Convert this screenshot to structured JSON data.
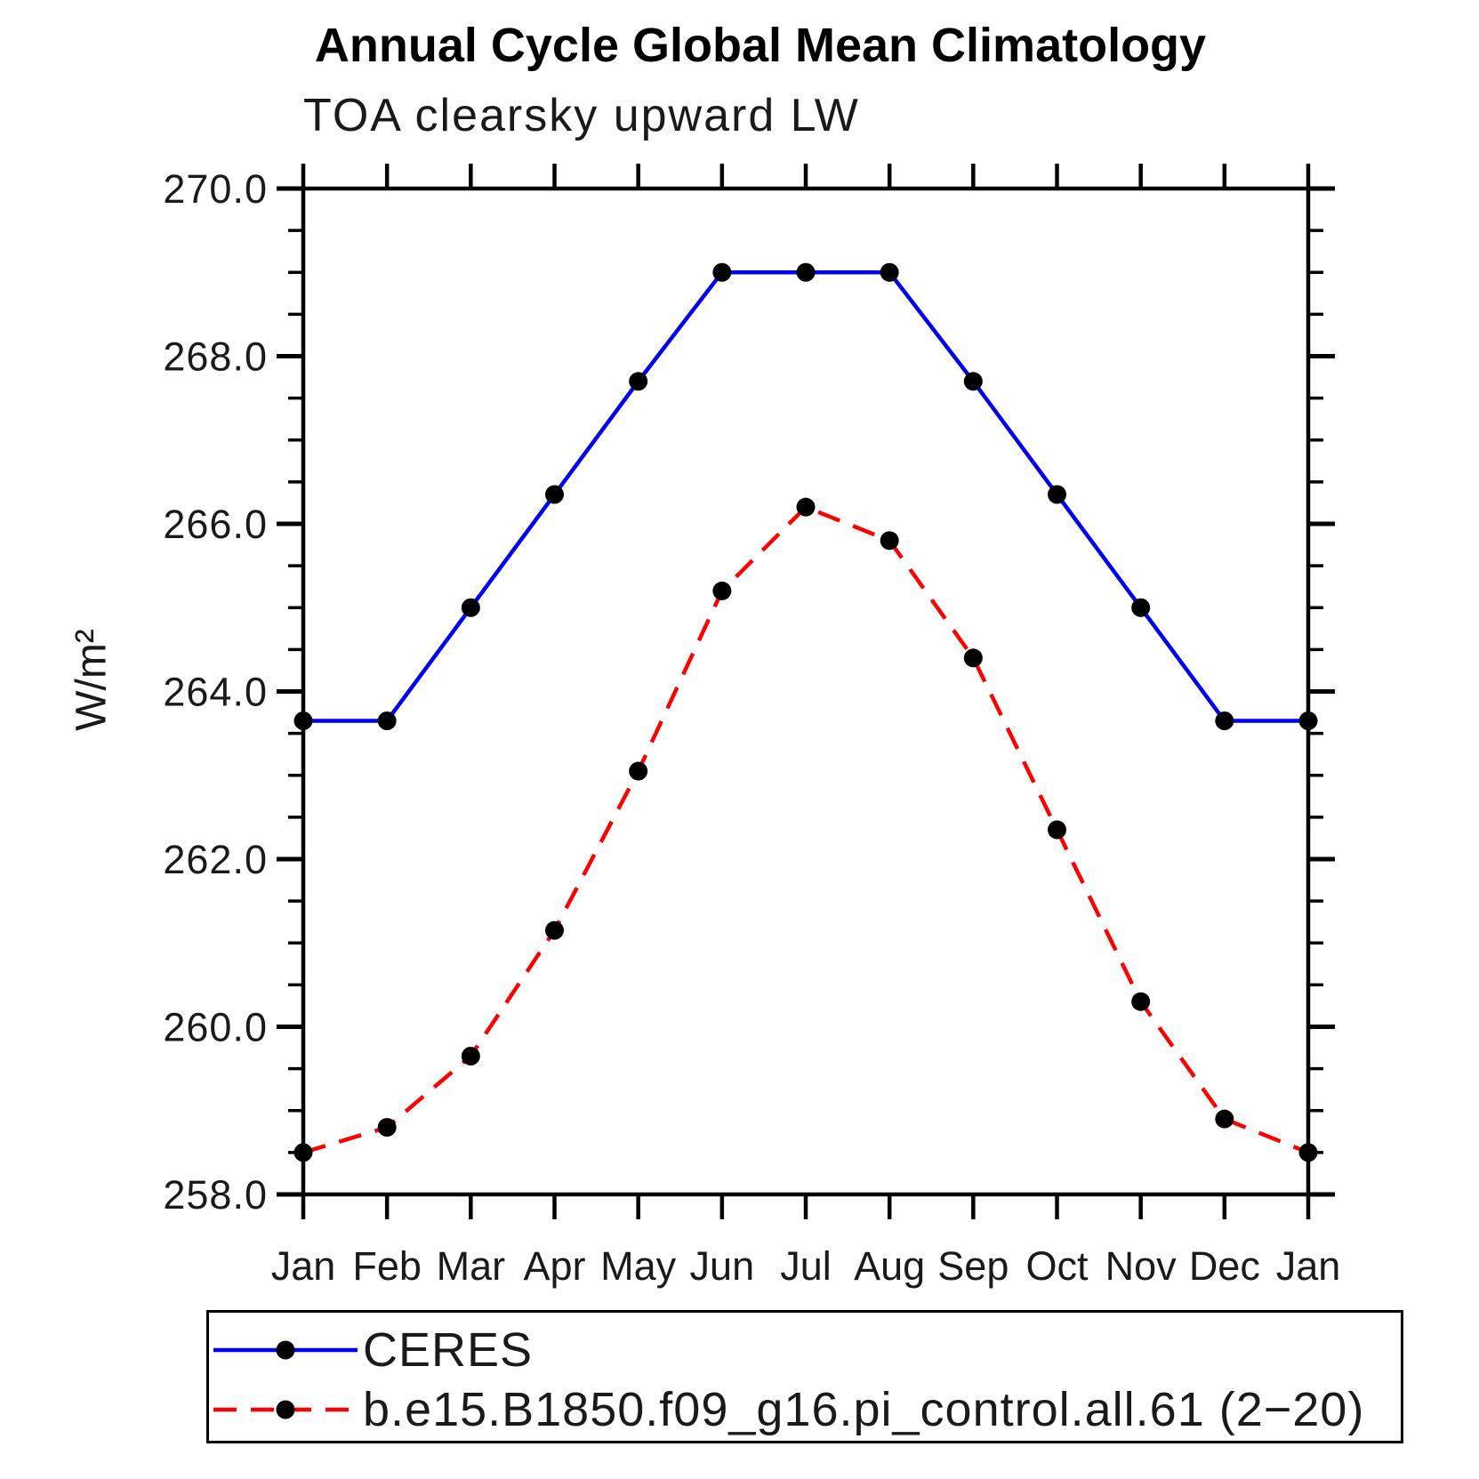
{
  "chart_data": {
    "type": "line",
    "title": "Annual Cycle Global Mean Climatology",
    "subtitle": "TOA clearsky upward LW",
    "ylabel": "W/m²",
    "xlabel": "",
    "categories": [
      "Jan",
      "Feb",
      "Mar",
      "Apr",
      "May",
      "Jun",
      "Jul",
      "Aug",
      "Sep",
      "Oct",
      "Nov",
      "Dec",
      "Jan"
    ],
    "ylim": [
      258.0,
      270.0
    ],
    "ytick_major_interval": 2.0,
    "ytick_minor_interval": 0.5,
    "ytick_labels": [
      "258.0",
      "260.0",
      "262.0",
      "264.0",
      "266.0",
      "268.0",
      "270.0"
    ],
    "grid": false,
    "frame_color": "#000000",
    "marker_color": "#000000",
    "legend_position": "bottom-left-box",
    "series": [
      {
        "name": "CERES",
        "color": "#0000ee",
        "style": "solid",
        "marker": "black-dot",
        "values": [
          263.65,
          263.65,
          265.0,
          266.35,
          267.7,
          269.0,
          269.0,
          269.0,
          267.7,
          266.35,
          265.0,
          263.65,
          263.65
        ]
      },
      {
        "name": "b.e15.B1850.f09_g16.pi_control.all.61 (2−20)",
        "color": "#ff0000",
        "style": "dashed",
        "marker": "black-dot",
        "values": [
          258.5,
          258.8,
          259.65,
          261.15,
          263.05,
          265.2,
          266.2,
          265.8,
          264.4,
          262.35,
          260.3,
          258.9,
          258.5
        ]
      }
    ]
  }
}
